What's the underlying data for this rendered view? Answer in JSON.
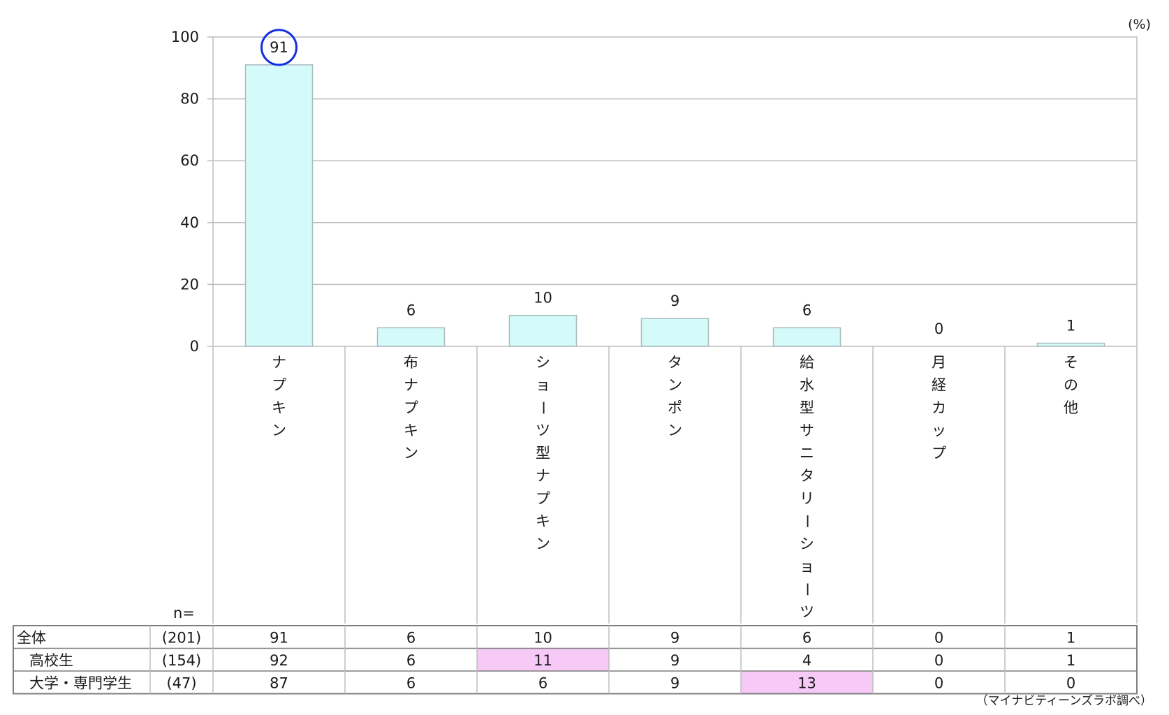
{
  "chart_data": {
    "type": "bar",
    "unit_label": "(%)",
    "ylim": [
      0,
      100
    ],
    "yticks": [
      "0",
      "20",
      "40",
      "60",
      "80",
      "100"
    ],
    "grid": true,
    "categories": [
      "ナプキン",
      "布ナプキン",
      "ショーツ型ナプキン",
      "タンポン",
      "給水型サニタリーショーツ",
      "月経カップ",
      "その他"
    ],
    "values": [
      91,
      6,
      10,
      9,
      6,
      0,
      1
    ],
    "value_labels": [
      "91",
      "6",
      "10",
      "9",
      "6",
      "0",
      "1"
    ],
    "highlight_circle_index": 0,
    "colors": {
      "bar_fill": "#d5fafa",
      "bar_stroke": "#a9bcc0",
      "grid": "#bdbdbd",
      "table_border": "#7d7d7d",
      "highlight_cell": "#f7c9f7",
      "circle": "#1230e0"
    },
    "table": {
      "n_label": "n=",
      "rows": [
        {
          "label": "全体",
          "n": "(201)",
          "values": [
            "91",
            "6",
            "10",
            "9",
            "6",
            "0",
            "1"
          ],
          "highlight_index": null
        },
        {
          "label": "高校生",
          "n": "(154)",
          "values": [
            "92",
            "6",
            "11",
            "9",
            "4",
            "0",
            "1"
          ],
          "highlight_index": 2
        },
        {
          "label": "大学・専門学生",
          "n": "(47)",
          "values": [
            "87",
            "6",
            "6",
            "9",
            "13",
            "0",
            "0"
          ],
          "highlight_index": 4
        }
      ]
    },
    "source_note": "（マイナビティーンズラボ調べ）"
  }
}
